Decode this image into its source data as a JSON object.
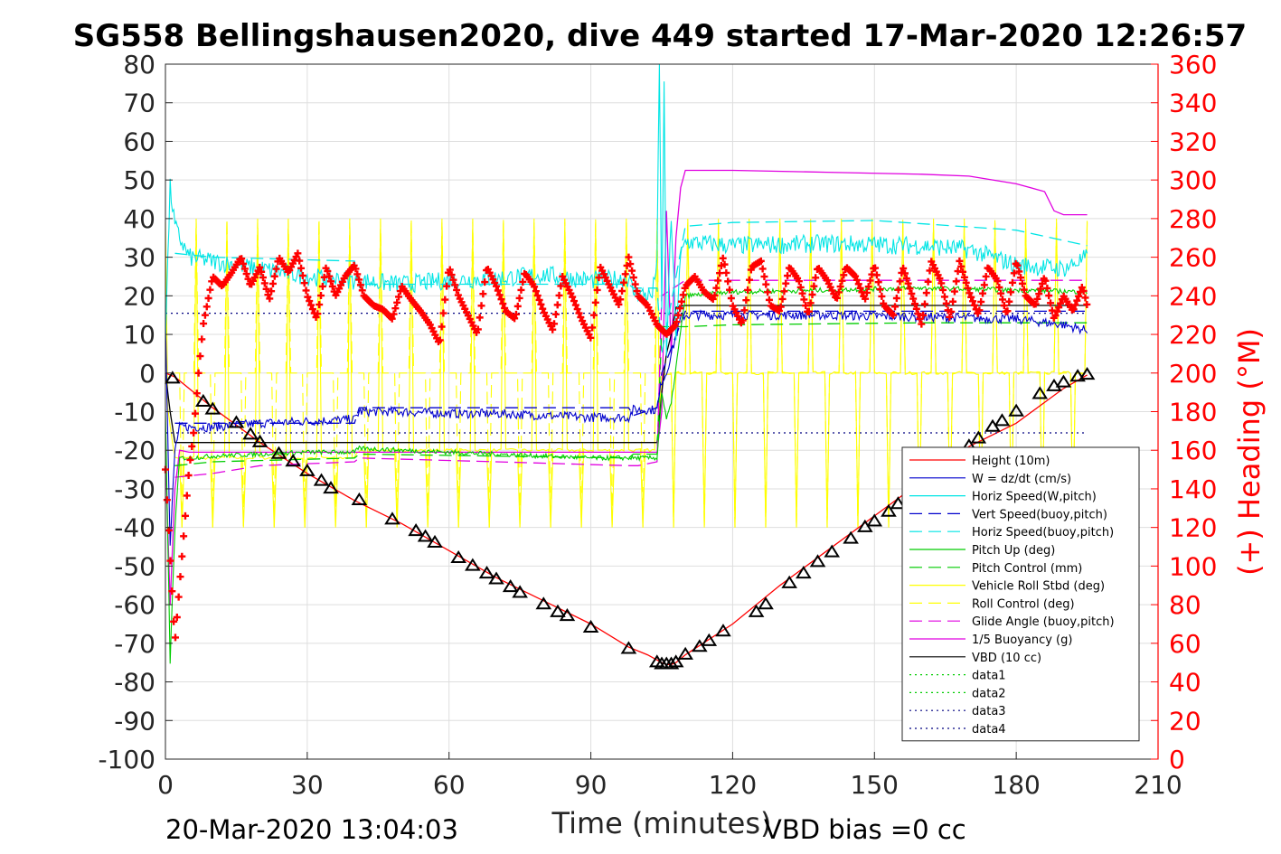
{
  "chart_data": {
    "type": "line",
    "title": "SG558 Bellingshausen2020, dive 449 started 17-Mar-2020 12:26:57",
    "xlabel": "Time (minutes)",
    "ylabel_right": "(+) Heading (°M)",
    "footer_left": "20-Mar-2020 13:04:03",
    "footer_right": "VBD bias =0 cc",
    "xlim": [
      0,
      210
    ],
    "ylim_left": [
      -100,
      80
    ],
    "ylim_right": [
      0,
      360
    ],
    "x_ticks": [
      0,
      30,
      60,
      90,
      120,
      150,
      180,
      210
    ],
    "x_tick_labels": [
      "0",
      "30",
      "60",
      "90",
      "120",
      "150",
      "180",
      "210"
    ],
    "y_left_ticks": [
      80,
      70,
      60,
      50,
      40,
      30,
      20,
      10,
      0,
      -10,
      -20,
      -30,
      -40,
      -50,
      -60,
      -70,
      -80,
      -90,
      -100
    ],
    "y_left_tick_labels": [
      "80",
      "70",
      "60",
      "50",
      "40",
      "30",
      "20",
      "10",
      "0",
      "-10",
      "-20",
      "-30",
      "-40",
      "-50",
      "-60",
      "-70",
      "-80",
      "-90",
      "-100"
    ],
    "y_right_ticks": [
      360,
      340,
      320,
      300,
      280,
      260,
      240,
      220,
      200,
      180,
      160,
      140,
      120,
      100,
      80,
      60,
      40,
      20,
      0
    ],
    "y_right_tick_labels": [
      "360",
      "340",
      "320",
      "300",
      "280",
      "260",
      "240",
      "220",
      "200",
      "180",
      "160",
      "140",
      "120",
      "100",
      "80",
      "60",
      "40",
      "20",
      "0"
    ],
    "grid": true,
    "legend_position": "bottom-right",
    "colors": {
      "axis_right": "#ff0000",
      "height": "#ff0000",
      "w": "#0000cd",
      "horiz_w": "#00e5e5",
      "vert_buoy": "#0000cd",
      "horiz_buoy": "#00e5e5",
      "pitch": "#00cc00",
      "pitch_ctrl": "#00cc00",
      "roll": "#ffff00",
      "roll_ctrl": "#ffff00",
      "glide": "#e000e0",
      "buoyancy": "#e000e0",
      "vbd": "#000000",
      "heading": "#ff0000",
      "dotted": "#000080",
      "dotted_green": "#00cc00"
    },
    "legend": [
      {
        "name": "Height (10m)",
        "color": "#ff0000",
        "dash": "solid"
      },
      {
        "name": "W = dz/dt (cm/s)",
        "color": "#0000cd",
        "dash": "solid"
      },
      {
        "name": "Horiz Speed(W,pitch)",
        "color": "#00e5e5",
        "dash": "solid"
      },
      {
        "name": "Vert Speed(buoy,pitch)",
        "color": "#0000cd",
        "dash": "dashed"
      },
      {
        "name": "Horiz Speed(buoy,pitch)",
        "color": "#00e5e5",
        "dash": "dashed"
      },
      {
        "name": "Pitch Up (deg)",
        "color": "#00cc00",
        "dash": "solid"
      },
      {
        "name": "Pitch Control (mm)",
        "color": "#00cc00",
        "dash": "dashed"
      },
      {
        "name": "Vehicle Roll Stbd (deg)",
        "color": "#ffff00",
        "dash": "solid"
      },
      {
        "name": "Roll Control (deg)",
        "color": "#ffff00",
        "dash": "dashed"
      },
      {
        "name": "Glide Angle (buoy,pitch)",
        "color": "#e000e0",
        "dash": "dashed"
      },
      {
        "name": "1/5 Buoyancy (g)",
        "color": "#e000e0",
        "dash": "solid"
      },
      {
        "name": "VBD (10 cc)",
        "color": "#000000",
        "dash": "solid"
      },
      {
        "name": "data1",
        "color": "#00cc00",
        "dash": "dotted"
      },
      {
        "name": "data2",
        "color": "#00cc00",
        "dash": "dotted"
      },
      {
        "name": "data3",
        "color": "#000080",
        "dash": "dotted"
      },
      {
        "name": "data4",
        "color": "#000080",
        "dash": "dotted"
      }
    ],
    "series": [
      {
        "name": "Height (10m)",
        "axis": "left",
        "style": "solid",
        "color": "#ff0000",
        "x": [
          0,
          2,
          10,
          20,
          30,
          40,
          50,
          60,
          70,
          80,
          90,
          98,
          102,
          105,
          106,
          107,
          108,
          110,
          120,
          130,
          140,
          150,
          160,
          170,
          180,
          190,
          195
        ],
        "y": [
          0,
          -1,
          -9,
          -18,
          -26,
          -33,
          -39,
          -46,
          -53,
          -59,
          -65,
          -71,
          -73,
          -75,
          -75.5,
          -75.5,
          -75,
          -73,
          -65,
          -55,
          -46,
          -37,
          -28,
          -19,
          -13,
          -4,
          -0.5
        ]
      },
      {
        "name": "Height markers",
        "axis": "left",
        "style": "triangles",
        "color": "#000000",
        "x": [
          1.5,
          8,
          10,
          15,
          18,
          20,
          24,
          27,
          30,
          33,
          35,
          41,
          48,
          53,
          55,
          57,
          62,
          65,
          68,
          70,
          73,
          75,
          80,
          83,
          85,
          90,
          98,
          104,
          105,
          106,
          107,
          108,
          110,
          113,
          115,
          118,
          125,
          127,
          132,
          135,
          138,
          141,
          145,
          148,
          150,
          153,
          155,
          160,
          163,
          166,
          170,
          172,
          175,
          177,
          180,
          185,
          188,
          190,
          193,
          195
        ],
        "y": [
          -1.5,
          -7.5,
          -9.5,
          -13,
          -16,
          -18,
          -21,
          -23,
          -25.5,
          -28,
          -30,
          -33,
          -38,
          -41,
          -42.5,
          -44,
          -48,
          -50,
          -52,
          -53.5,
          -55.5,
          -57,
          -60,
          -62,
          -63,
          -66,
          -71.5,
          -75,
          -75.5,
          -75.5,
          -75.5,
          -75,
          -73,
          -71,
          -69.5,
          -67,
          -62,
          -60,
          -54.5,
          -52,
          -49,
          -46.5,
          -43,
          -40,
          -38.5,
          -36,
          -34,
          -29,
          -26,
          -23,
          -19,
          -17,
          -14,
          -12.5,
          -10,
          -5.5,
          -3.5,
          -2.5,
          -1,
          -0.5
        ]
      },
      {
        "name": "W = dz/dt (cm/s)",
        "axis": "left",
        "style": "noisy",
        "noise": 1.2,
        "color": "#0000cd",
        "x": [
          0,
          1,
          2,
          3,
          5,
          10,
          20,
          30,
          40,
          41,
          50,
          60,
          70,
          80,
          90,
          98,
          99,
          104,
          105,
          106,
          107,
          109,
          110,
          120,
          140,
          160,
          180,
          190,
          195
        ],
        "y": [
          15,
          -45,
          -20,
          -14,
          -14,
          -14,
          -13,
          -12.5,
          -12,
          -10,
          -10,
          -10.5,
          -10.5,
          -11,
          -11.5,
          -11.5,
          -9.5,
          -9.5,
          -2,
          0,
          5,
          14,
          15,
          15,
          15,
          14.5,
          14,
          12.5,
          11
        ]
      },
      {
        "name": "Horiz Speed(W,pitch)",
        "axis": "left",
        "style": "noisy",
        "noise": 2.4,
        "color": "#00e5e5",
        "x": [
          0,
          1,
          2,
          3,
          5,
          10,
          20,
          30,
          40,
          50,
          60,
          70,
          80,
          90,
          98,
          99,
          103,
          104,
          104.5,
          105,
          105.5,
          106,
          107,
          108,
          109,
          110,
          120,
          140,
          160,
          170,
          180,
          190,
          195
        ],
        "y": [
          10,
          48,
          38,
          35,
          30,
          29,
          27,
          25,
          24,
          23,
          24,
          24.5,
          25.5,
          24,
          24.5,
          21,
          20,
          30,
          80,
          15,
          75,
          5,
          40,
          10,
          30,
          34,
          33,
          33.5,
          33,
          32,
          28,
          27,
          30
        ]
      },
      {
        "name": "Vert Speed(buoy,pitch)",
        "axis": "left",
        "style": "dashed",
        "color": "#0000cd",
        "x": [
          2,
          10,
          40,
          41,
          98,
          99,
          104,
          105,
          110,
          195
        ],
        "y": [
          -13,
          -13,
          -13,
          -9,
          -9,
          -11,
          -9,
          0,
          16,
          16
        ]
      },
      {
        "name": "Horiz Speed(buoy,pitch)",
        "axis": "left",
        "style": "dashed",
        "color": "#00e5e5",
        "x": [
          2,
          10,
          40,
          41,
          98,
          99,
          104,
          105,
          110,
          120,
          150,
          180,
          195
        ],
        "y": [
          31,
          30,
          29,
          23,
          23,
          22,
          22,
          5,
          38,
          39,
          39.5,
          37,
          33
        ]
      },
      {
        "name": "Pitch Up (deg)",
        "axis": "left",
        "style": "noisy",
        "noise": 0.6,
        "color": "#00cc00",
        "x": [
          0,
          1,
          2,
          3,
          5,
          10,
          20,
          30,
          40,
          41,
          50,
          60,
          70,
          80,
          90,
          98,
          104,
          105,
          106,
          107,
          110,
          120,
          140,
          160,
          180,
          195
        ],
        "y": [
          -10,
          -75,
          -40,
          -22,
          -22,
          -21.5,
          -21,
          -20.5,
          -20.5,
          -19.5,
          -20,
          -20.5,
          -21,
          -21.5,
          -22,
          -22,
          -22,
          -5,
          -12,
          -8,
          20,
          21,
          21.5,
          22,
          21.5,
          21
        ]
      },
      {
        "name": "Pitch Control (mm)",
        "axis": "left",
        "style": "dashed",
        "color": "#00cc00",
        "x": [
          2,
          10,
          40,
          41,
          98,
          99,
          104,
          105,
          110,
          120,
          160,
          190,
          195
        ],
        "y": [
          -24,
          -23,
          -22,
          -21,
          -22,
          -21,
          -21,
          12,
          12,
          12.5,
          13,
          13,
          13
        ]
      },
      {
        "name": "Vehicle Roll Stbd (deg)",
        "axis": "left",
        "style": "roll",
        "color": "#ffff00",
        "x": [
          0,
          2,
          40,
          41,
          104,
          105,
          195
        ],
        "y": [
          -5,
          -22,
          -22,
          -20,
          -20,
          0,
          0
        ]
      },
      {
        "name": "Roll Control (deg)",
        "axis": "left",
        "style": "rollctrl",
        "color": "#ffff00",
        "x": [
          0,
          195
        ],
        "y": [
          0,
          0
        ]
      },
      {
        "name": "Glide Angle (buoy,pitch)",
        "axis": "left",
        "style": "dashed",
        "color": "#e000e0",
        "x": [
          2,
          10,
          20,
          40,
          41,
          70,
          98,
          100,
          104,
          105,
          110,
          195
        ],
        "y": [
          -27,
          -26,
          -24,
          -23,
          -22,
          -23,
          -24,
          -24,
          -23,
          20,
          24,
          24
        ]
      },
      {
        "name": "1/5 Buoyancy (g)",
        "axis": "left",
        "style": "solid",
        "color": "#e000e0",
        "x": [
          0,
          1,
          2,
          3,
          5,
          10,
          20,
          30,
          40,
          60,
          80,
          104,
          105,
          106,
          107,
          108,
          109,
          110,
          120,
          140,
          160,
          170,
          180,
          186,
          188,
          190,
          195
        ],
        "y": [
          -20,
          -60,
          -30,
          -20,
          -20.5,
          -20.5,
          -20.5,
          -20.5,
          -20.5,
          -20.5,
          -20.5,
          -20.5,
          -10,
          42,
          5,
          35,
          48,
          52.5,
          52.5,
          52,
          51.5,
          51,
          49,
          47,
          42,
          41,
          41
        ]
      },
      {
        "name": "VBD (10 cc)",
        "axis": "left",
        "style": "solid",
        "color": "#000000",
        "x": [
          0,
          1,
          2,
          104,
          105,
          106,
          107,
          108,
          110,
          195
        ],
        "y": [
          0,
          -10,
          -18,
          -18,
          -5,
          5,
          10,
          17,
          17.5,
          17.5
        ]
      },
      {
        "name": "data3",
        "axis": "left",
        "style": "dotted",
        "color": "#000080",
        "x": [
          0,
          195
        ],
        "y": [
          15.5,
          15.5
        ]
      },
      {
        "name": "data4",
        "axis": "left",
        "style": "dotted",
        "color": "#000080",
        "x": [
          0,
          195
        ],
        "y": [
          -15.5,
          -15.5
        ]
      },
      {
        "name": "(+) Heading",
        "axis": "right",
        "style": "plus",
        "color": "#ff0000",
        "x": [
          0,
          2,
          3,
          4,
          5,
          6,
          7,
          8,
          10,
          12,
          14,
          16,
          18,
          20,
          22,
          24,
          26,
          28,
          30,
          32,
          34,
          36,
          38,
          40,
          42,
          44,
          46,
          48,
          50,
          52,
          54,
          56,
          58,
          60,
          62,
          64,
          66,
          68,
          70,
          72,
          74,
          76,
          78,
          80,
          82,
          84,
          86,
          88,
          90,
          92,
          94,
          96,
          98,
          100,
          102,
          104,
          106,
          108,
          110,
          112,
          114,
          116,
          118,
          120,
          122,
          124,
          126,
          128,
          130,
          132,
          134,
          136,
          138,
          140,
          142,
          144,
          146,
          148,
          150,
          152,
          154,
          156,
          158,
          160,
          162,
          164,
          166,
          168,
          170,
          172,
          174,
          176,
          178,
          180,
          182,
          184,
          186,
          188,
          190,
          192,
          194,
          195
        ],
        "y": [
          150,
          60,
          90,
          120,
          150,
          170,
          200,
          225,
          250,
          245,
          252,
          260,
          245,
          255,
          238,
          260,
          252,
          262,
          240,
          228,
          255,
          240,
          250,
          256,
          240,
          235,
          233,
          228,
          245,
          238,
          232,
          225,
          215,
          255,
          240,
          230,
          220,
          255,
          245,
          232,
          228,
          252,
          245,
          232,
          222,
          250,
          240,
          228,
          218,
          255,
          245,
          235,
          260,
          240,
          235,
          225,
          220,
          225,
          245,
          250,
          242,
          238,
          260,
          235,
          225,
          255,
          258,
          235,
          232,
          255,
          248,
          230,
          255,
          248,
          238,
          255,
          250,
          238,
          256,
          235,
          230,
          255,
          240,
          225,
          258,
          248,
          228,
          258,
          242,
          230,
          255,
          248,
          230,
          258,
          240,
          235,
          250,
          228,
          240,
          232,
          245,
          235
        ]
      }
    ]
  }
}
